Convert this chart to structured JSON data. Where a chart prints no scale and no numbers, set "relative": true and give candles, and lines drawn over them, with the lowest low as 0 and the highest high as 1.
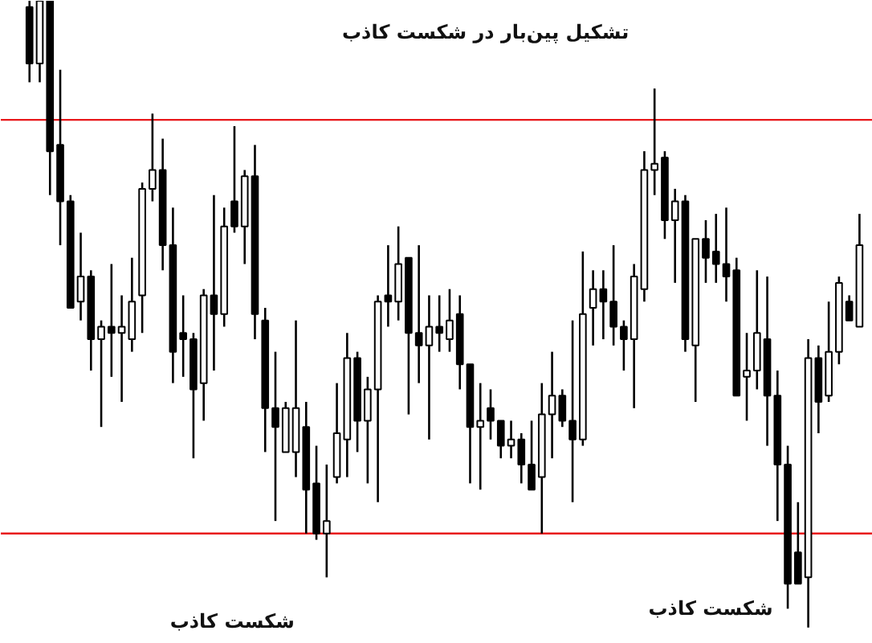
{
  "chart_data": {
    "type": "candlestick",
    "relative": true,
    "grid": false,
    "categories": [
      null,
      null,
      null,
      null,
      null,
      null,
      null,
      null,
      null,
      null,
      null,
      null,
      null,
      null,
      null,
      null,
      null,
      null,
      null,
      null,
      null,
      null,
      null,
      null,
      null,
      null,
      null,
      null,
      null,
      null,
      null,
      null,
      null,
      null,
      null,
      null,
      null,
      null,
      null,
      null,
      null,
      null,
      null,
      null,
      null,
      null,
      null,
      null,
      null,
      null,
      null,
      null,
      null,
      null,
      null,
      null,
      null,
      null,
      null,
      null,
      null,
      null,
      null,
      null,
      null,
      null,
      null,
      null,
      null,
      null,
      null,
      null,
      null,
      null,
      null,
      null,
      null,
      null,
      null,
      null,
      null,
      null
    ],
    "ohlc": [
      [
        0.99,
        1.0,
        0.87,
        0.9
      ],
      [
        0.9,
        1.0,
        0.87,
        1.0
      ],
      [
        1.0,
        1.0,
        0.69,
        0.76
      ],
      [
        0.77,
        0.89,
        0.61,
        0.68
      ],
      [
        0.68,
        0.69,
        0.51,
        0.51
      ],
      [
        0.52,
        0.63,
        0.49,
        0.56
      ],
      [
        0.56,
        0.57,
        0.41,
        0.46
      ],
      [
        0.46,
        0.49,
        0.32,
        0.48
      ],
      [
        0.48,
        0.58,
        0.4,
        0.47
      ],
      [
        0.47,
        0.53,
        0.36,
        0.48
      ],
      [
        0.46,
        0.59,
        0.44,
        0.52
      ],
      [
        0.53,
        0.71,
        0.47,
        0.7
      ],
      [
        0.7,
        0.82,
        0.68,
        0.73
      ],
      [
        0.73,
        0.78,
        0.57,
        0.61
      ],
      [
        0.61,
        0.67,
        0.39,
        0.44
      ],
      [
        0.47,
        0.53,
        0.4,
        0.46
      ],
      [
        0.46,
        0.47,
        0.27,
        0.38
      ],
      [
        0.39,
        0.54,
        0.33,
        0.53
      ],
      [
        0.53,
        0.69,
        0.41,
        0.5
      ],
      [
        0.5,
        0.67,
        0.48,
        0.64
      ],
      [
        0.68,
        0.8,
        0.63,
        0.64
      ],
      [
        0.64,
        0.73,
        0.58,
        0.72
      ],
      [
        0.72,
        0.77,
        0.46,
        0.5
      ],
      [
        0.49,
        0.51,
        0.28,
        0.35
      ],
      [
        0.35,
        0.44,
        0.17,
        0.32
      ],
      [
        0.28,
        0.36,
        0.28,
        0.35
      ],
      [
        0.28,
        0.49,
        0.24,
        0.35
      ],
      [
        0.32,
        0.36,
        0.15,
        0.22
      ],
      [
        0.23,
        0.29,
        0.14,
        0.15
      ],
      [
        0.15,
        0.26,
        0.08,
        0.17
      ],
      [
        0.24,
        0.39,
        0.23,
        0.31
      ],
      [
        0.3,
        0.47,
        0.24,
        0.43
      ],
      [
        0.43,
        0.44,
        0.28,
        0.33
      ],
      [
        0.33,
        0.4,
        0.23,
        0.38
      ],
      [
        0.38,
        0.53,
        0.2,
        0.52
      ],
      [
        0.53,
        0.61,
        0.48,
        0.52
      ],
      [
        0.52,
        0.64,
        0.49,
        0.58
      ],
      [
        0.59,
        0.59,
        0.34,
        0.47
      ],
      [
        0.47,
        0.61,
        0.39,
        0.45
      ],
      [
        0.45,
        0.53,
        0.3,
        0.48
      ],
      [
        0.48,
        0.53,
        0.44,
        0.47
      ],
      [
        0.46,
        0.54,
        0.44,
        0.49
      ],
      [
        0.5,
        0.53,
        0.38,
        0.42
      ],
      [
        0.42,
        0.42,
        0.23,
        0.32
      ],
      [
        0.32,
        0.39,
        0.22,
        0.33
      ],
      [
        0.35,
        0.38,
        0.3,
        0.33
      ],
      [
        0.33,
        0.33,
        0.27,
        0.29
      ],
      [
        0.29,
        0.33,
        0.27,
        0.3
      ],
      [
        0.3,
        0.31,
        0.23,
        0.26
      ],
      [
        0.26,
        0.33,
        0.22,
        0.22
      ],
      [
        0.24,
        0.39,
        0.15,
        0.34
      ],
      [
        0.34,
        0.44,
        0.27,
        0.37
      ],
      [
        0.37,
        0.38,
        0.32,
        0.33
      ],
      [
        0.33,
        0.49,
        0.2,
        0.3
      ],
      [
        0.3,
        0.6,
        0.29,
        0.5
      ],
      [
        0.51,
        0.57,
        0.45,
        0.54
      ],
      [
        0.54,
        0.57,
        0.46,
        0.52
      ],
      [
        0.52,
        0.61,
        0.45,
        0.48
      ],
      [
        0.48,
        0.49,
        0.41,
        0.46
      ],
      [
        0.46,
        0.58,
        0.35,
        0.56
      ],
      [
        0.54,
        0.76,
        0.52,
        0.73
      ],
      [
        0.73,
        0.86,
        0.69,
        0.74
      ],
      [
        0.75,
        0.76,
        0.62,
        0.65
      ],
      [
        0.65,
        0.7,
        0.55,
        0.68
      ],
      [
        0.68,
        0.69,
        0.44,
        0.46
      ],
      [
        0.45,
        0.62,
        0.36,
        0.62
      ],
      [
        0.62,
        0.65,
        0.55,
        0.59
      ],
      [
        0.6,
        0.66,
        0.55,
        0.58
      ],
      [
        0.58,
        0.67,
        0.52,
        0.56
      ],
      [
        0.57,
        0.59,
        0.37,
        0.37
      ],
      [
        0.4,
        0.47,
        0.33,
        0.41
      ],
      [
        0.41,
        0.57,
        0.38,
        0.47
      ],
      [
        0.46,
        0.56,
        0.29,
        0.37
      ],
      [
        0.37,
        0.41,
        0.17,
        0.26
      ],
      [
        0.26,
        0.29,
        0.03,
        0.07
      ],
      [
        0.12,
        0.2,
        0.07,
        0.07
      ],
      [
        0.08,
        0.46,
        0.0,
        0.43
      ],
      [
        0.43,
        0.45,
        0.31,
        0.36
      ],
      [
        0.37,
        0.52,
        0.36,
        0.44
      ],
      [
        0.44,
        0.56,
        0.42,
        0.55
      ],
      [
        0.52,
        0.53,
        0.49,
        0.49
      ],
      [
        0.48,
        0.66,
        0.48,
        0.61
      ]
    ],
    "ref_lines": [
      {
        "axis": "y",
        "value": 0.81,
        "color": "#e8181b"
      },
      {
        "axis": "y",
        "value": 0.15,
        "color": "#e8181b"
      }
    ],
    "annotations": [
      "تشکیل پین‌بار در شکست کاذب",
      "شکست کاذب",
      "شکست کاذب"
    ]
  }
}
